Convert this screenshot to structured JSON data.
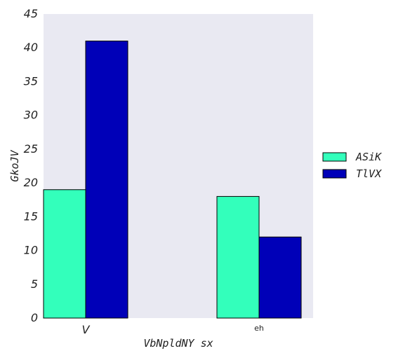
{
  "chart_data": {
    "type": "bar",
    "categories": [
      "V",
      "eh"
    ],
    "series": [
      {
        "name": "ASiK",
        "values": [
          19,
          18
        ],
        "color": "#33ffbb"
      },
      {
        "name": "TlVX",
        "values": [
          41,
          12
        ],
        "color": "#0000b8"
      }
    ],
    "xlabel": "VbNpldNY sx",
    "ylabel": "GkoJV",
    "ylim": [
      0,
      45
    ],
    "yticks": [
      "0",
      "5",
      "10",
      "15",
      "20",
      "25",
      "30",
      "35",
      "40",
      "45"
    ],
    "grid": false,
    "legend_position": "right",
    "plot_background": "#e9e9f2"
  }
}
